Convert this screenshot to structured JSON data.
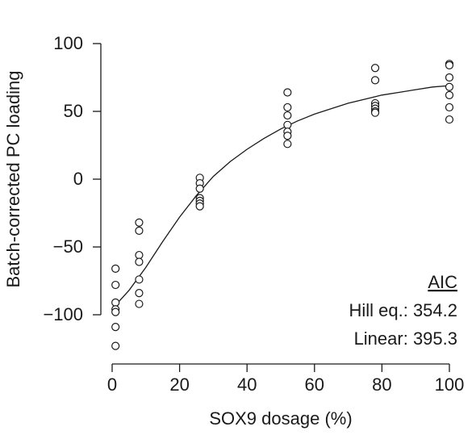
{
  "chart_data": {
    "type": "scatter",
    "title": "",
    "xlabel": "SOX9 dosage (%)",
    "ylabel": "Batch-corrected PC loading",
    "xlim": [
      0,
      100
    ],
    "ylim": [
      -130,
      100
    ],
    "xticks": [
      0,
      20,
      40,
      60,
      80,
      100
    ],
    "yticks": [
      100,
      50,
      0,
      -50,
      -100
    ],
    "xtick_labels": [
      "0",
      "20",
      "40",
      "60",
      "80",
      "100"
    ],
    "ytick_labels": [
      "100",
      "50",
      "0",
      "−50",
      "−100"
    ],
    "grid": false,
    "points": [
      {
        "x": 1,
        "y": -66
      },
      {
        "x": 1,
        "y": -78
      },
      {
        "x": 1,
        "y": -91
      },
      {
        "x": 1,
        "y": -96
      },
      {
        "x": 1,
        "y": -98
      },
      {
        "x": 1,
        "y": -109
      },
      {
        "x": 1,
        "y": -123
      },
      {
        "x": 8,
        "y": -32
      },
      {
        "x": 8,
        "y": -38
      },
      {
        "x": 8,
        "y": -56
      },
      {
        "x": 8,
        "y": -61
      },
      {
        "x": 8,
        "y": -74
      },
      {
        "x": 8,
        "y": -84
      },
      {
        "x": 8,
        "y": -92
      },
      {
        "x": 26,
        "y": 1
      },
      {
        "x": 26,
        "y": -3
      },
      {
        "x": 26,
        "y": -7
      },
      {
        "x": 26,
        "y": -14
      },
      {
        "x": 26,
        "y": -16
      },
      {
        "x": 26,
        "y": -18
      },
      {
        "x": 26,
        "y": -20
      },
      {
        "x": 52,
        "y": 64
      },
      {
        "x": 52,
        "y": 53
      },
      {
        "x": 52,
        "y": 47
      },
      {
        "x": 52,
        "y": 40
      },
      {
        "x": 52,
        "y": 35
      },
      {
        "x": 52,
        "y": 32
      },
      {
        "x": 52,
        "y": 26
      },
      {
        "x": 78,
        "y": 82
      },
      {
        "x": 78,
        "y": 73
      },
      {
        "x": 78,
        "y": 56
      },
      {
        "x": 78,
        "y": 54
      },
      {
        "x": 78,
        "y": 52
      },
      {
        "x": 78,
        "y": 50
      },
      {
        "x": 78,
        "y": 49
      },
      {
        "x": 100,
        "y": 85
      },
      {
        "x": 100,
        "y": 84
      },
      {
        "x": 100,
        "y": 75
      },
      {
        "x": 100,
        "y": 68
      },
      {
        "x": 100,
        "y": 62
      },
      {
        "x": 100,
        "y": 53
      },
      {
        "x": 100,
        "y": 44
      }
    ],
    "fit_curve": {
      "x": [
        1,
        5,
        10,
        15,
        20,
        25,
        30,
        35,
        40,
        45,
        50,
        55,
        60,
        65,
        70,
        75,
        80,
        85,
        90,
        95,
        100
      ],
      "y": [
        -93,
        -82,
        -65,
        -46,
        -28,
        -12,
        2,
        13,
        22,
        30,
        37,
        43,
        48,
        52,
        56,
        59,
        62,
        64,
        66,
        68,
        69
      ]
    },
    "annotation": {
      "heading": "AIC",
      "lines": [
        "Hill eq.: 354.2",
        "Linear: 395.3"
      ]
    }
  }
}
